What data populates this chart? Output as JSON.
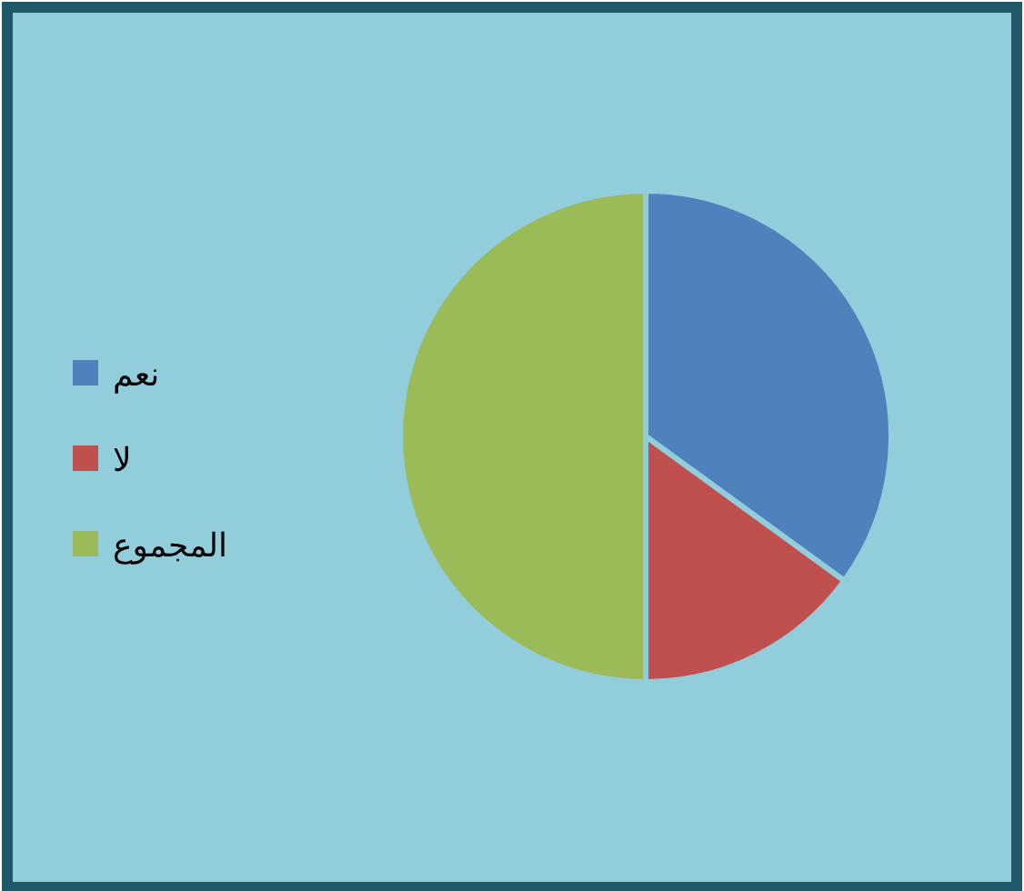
{
  "chart_data": {
    "type": "pie",
    "categories": [
      "نعم",
      "لا",
      "المجموع"
    ],
    "values": [
      35,
      15,
      50
    ],
    "colors": [
      "#4f81bd",
      "#c0504d",
      "#9bbb59"
    ],
    "legend": "left"
  }
}
